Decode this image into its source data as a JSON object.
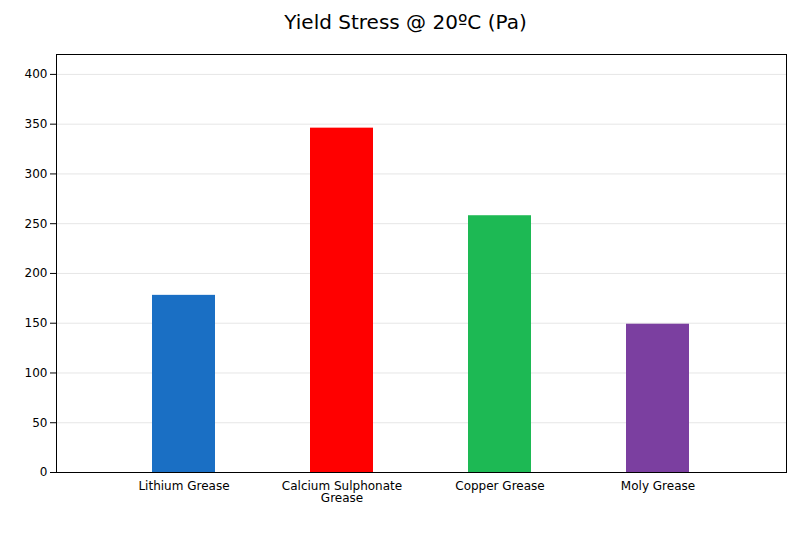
{
  "chart_data": {
    "type": "bar",
    "title": "Yield Stress @ 20ºC (Pa)",
    "categories": [
      "Lithium Grease",
      "Calcium Sulphonate\nGrease",
      "Copper Grease",
      "Moly Grease"
    ],
    "values": [
      178,
      346,
      258,
      149
    ],
    "colors": [
      "#1a6fc4",
      "#ff0000",
      "#1db954",
      "#7b3fa0"
    ],
    "ylim": [
      0,
      420
    ],
    "yticks": [
      0,
      50,
      100,
      150,
      200,
      250,
      300,
      350,
      400
    ],
    "grid": true
  }
}
